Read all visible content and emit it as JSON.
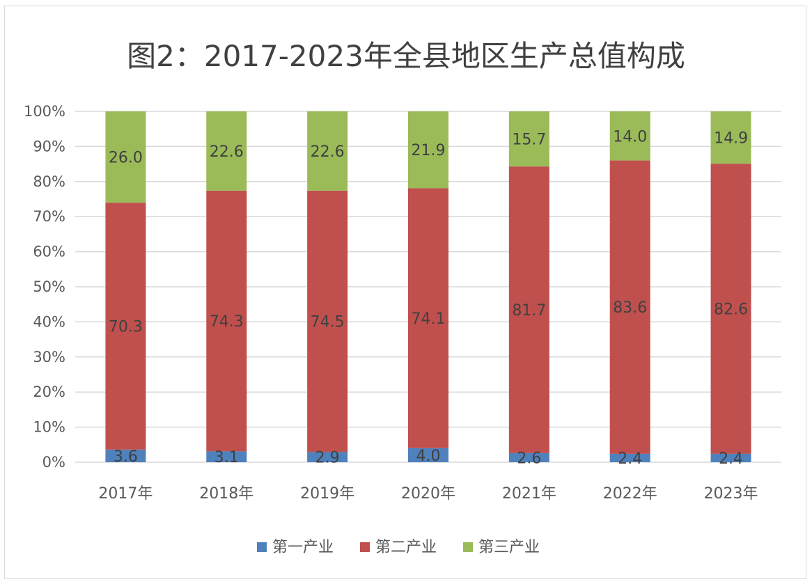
{
  "chart_data": {
    "type": "bar",
    "stacked": true,
    "normalized": true,
    "title": "图2：2017-2023年全县地区生产总值构成",
    "categories": [
      "2017年",
      "2018年",
      "2019年",
      "2020年",
      "2021年",
      "2022年",
      "2023年"
    ],
    "series": [
      {
        "name": "第一产业",
        "color": "#4f81bd",
        "values": [
          3.6,
          3.1,
          2.9,
          4.0,
          2.6,
          2.4,
          2.4
        ]
      },
      {
        "name": "第二产业",
        "color": "#c0504d",
        "values": [
          70.3,
          74.3,
          74.5,
          74.1,
          81.7,
          83.6,
          82.6
        ]
      },
      {
        "name": "第三产业",
        "color": "#9bbb59",
        "values": [
          26.0,
          22.6,
          22.6,
          21.9,
          15.7,
          14.0,
          14.9
        ]
      }
    ],
    "data_labels": [
      [
        "3.6",
        "3.1",
        "2.9",
        "4.0",
        "2.6",
        "2.4",
        "2.4"
      ],
      [
        "70.3",
        "74.3",
        "74.5",
        "74.1",
        "81.7",
        "83.6",
        "82.6"
      ],
      [
        "26.0",
        "22.6",
        "22.6",
        "21.9",
        "15.7",
        "14.0",
        "14.9"
      ]
    ],
    "y_ticks": [
      "0%",
      "10%",
      "20%",
      "30%",
      "40%",
      "50%",
      "60%",
      "70%",
      "80%",
      "90%",
      "100%"
    ],
    "ylim": [
      0,
      100
    ],
    "grid": true,
    "legend_position": "bottom"
  }
}
